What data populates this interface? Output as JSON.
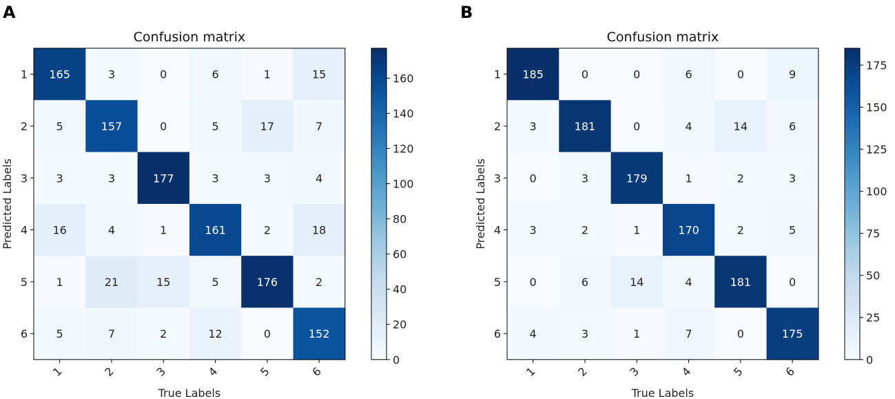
{
  "chart_data": [
    {
      "type": "heatmap",
      "panel_label": "A",
      "title": "Confusion matrix",
      "xlabel": "True Labels",
      "ylabel": "Predicted Labels",
      "x_categories": [
        "1",
        "2",
        "3",
        "4",
        "5",
        "6"
      ],
      "y_categories": [
        "1",
        "2",
        "3",
        "4",
        "5",
        "6"
      ],
      "matrix": [
        [
          165,
          3,
          0,
          6,
          1,
          15
        ],
        [
          5,
          157,
          0,
          5,
          17,
          7
        ],
        [
          3,
          3,
          177,
          3,
          3,
          4
        ],
        [
          16,
          4,
          1,
          161,
          2,
          18
        ],
        [
          1,
          21,
          15,
          5,
          176,
          2
        ],
        [
          5,
          7,
          2,
          12,
          0,
          152
        ]
      ],
      "colorbar": {
        "min": 0,
        "max": 177,
        "ticks": [
          0,
          20,
          40,
          60,
          80,
          100,
          120,
          140,
          160
        ]
      },
      "colormap": "Blues"
    },
    {
      "type": "heatmap",
      "panel_label": "B",
      "title": "Confusion matrix",
      "xlabel": "True Labels",
      "ylabel": "Predicted Labels",
      "x_categories": [
        "1",
        "2",
        "3",
        "4",
        "5",
        "6"
      ],
      "y_categories": [
        "1",
        "2",
        "3",
        "4",
        "5",
        "6"
      ],
      "matrix": [
        [
          185,
          0,
          0,
          6,
          0,
          9
        ],
        [
          3,
          181,
          0,
          4,
          14,
          6
        ],
        [
          0,
          3,
          179,
          1,
          2,
          3
        ],
        [
          3,
          2,
          1,
          170,
          2,
          5
        ],
        [
          0,
          6,
          14,
          4,
          181,
          0
        ],
        [
          4,
          3,
          1,
          7,
          0,
          175
        ]
      ],
      "colorbar": {
        "min": 0,
        "max": 185,
        "ticks": [
          0,
          25,
          50,
          75,
          100,
          125,
          150,
          175
        ]
      },
      "colormap": "Blues"
    }
  ]
}
